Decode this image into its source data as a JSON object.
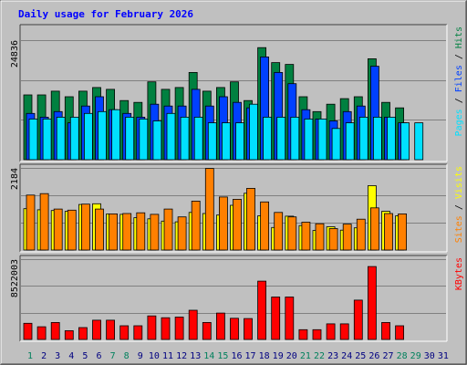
{
  "chart_data": {
    "type": "bar",
    "title": "Daily usage for February 2026",
    "x": [
      "1",
      "2",
      "3",
      "4",
      "5",
      "6",
      "7",
      "8",
      "9",
      "10",
      "11",
      "12",
      "13",
      "14",
      "15",
      "16",
      "17",
      "18",
      "19",
      "20",
      "21",
      "22",
      "23",
      "24",
      "25",
      "26",
      "27",
      "28",
      "29",
      "30",
      "31"
    ],
    "weekend_days": [
      1,
      7,
      8,
      14,
      15,
      21,
      22,
      28,
      29
    ],
    "colors": {
      "hits": "#008040",
      "files": "#0040ff",
      "pages": "#00e0ff",
      "visits": "#ffff00",
      "sites": "#ff8000",
      "kbytes": "#ff0000",
      "title": "#0000ff",
      "weekday": "#000080",
      "weekend": "#00805c"
    },
    "panels": [
      {
        "id": "hits",
        "max_label": "24836",
        "ymax": 24836,
        "legend": [
          {
            "label": "Pages",
            "color": "#00e0ff"
          },
          {
            "label": "Files",
            "color": "#0040ff"
          },
          {
            "label": "Hits",
            "color": "#008040"
          }
        ],
        "series": [
          {
            "name": "Hits",
            "color": "#008040",
            "values": [
              13470,
              13470,
              14230,
              13080,
              14230,
              15000,
              14620,
              12290,
              11900,
              16170,
              14620,
              15000,
              18130,
              14230,
              15000,
              16170,
              12290,
              23280,
              20180,
              19790,
              13080,
              9990,
              11530,
              12690,
              13080,
              20960,
              11900,
              10770,
              null,
              null,
              null
            ]
          },
          {
            "name": "Files",
            "color": "#0040ff",
            "values": [
              9610,
              8840,
              10000,
              7660,
              11150,
              13080,
              10380,
              9610,
              8840,
              11530,
              11150,
              11150,
              14620,
              11150,
              13080,
              11900,
              10770,
              21340,
              18130,
              15800,
              10380,
              8460,
              8060,
              10000,
              11150,
              19410,
              8840,
              7660,
              null,
              null,
              null
            ]
          },
          {
            "name": "Pages",
            "color": "#00e0ff",
            "values": [
              8460,
              8460,
              8840,
              8840,
              9610,
              9990,
              10380,
              8840,
              8460,
              8060,
              9610,
              8840,
              8840,
              7660,
              7660,
              7660,
              11530,
              8840,
              8840,
              8840,
              8460,
              8460,
              6490,
              7660,
              8840,
              8840,
              8840,
              7660,
              7660,
              null,
              null
            ]
          }
        ]
      },
      {
        "id": "visits",
        "max_label": "2184",
        "ymax": 2184,
        "legend": [
          {
            "label": "Sites",
            "color": "#ff8000"
          },
          {
            "label": "Visits",
            "color": "#ffff00"
          }
        ],
        "series": [
          {
            "name": "Visits",
            "color": "#ffff00",
            "values": [
              1100,
              1070,
              1050,
              1030,
              1210,
              1230,
              960,
              950,
              860,
              830,
              770,
              750,
              1000,
              970,
              930,
              1190,
              1510,
              910,
              600,
              900,
              650,
              520,
              620,
              530,
              590,
              1710,
              1030,
              910,
              null,
              null,
              null
            ]
          },
          {
            "name": "Sites",
            "color": "#ff8000",
            "values": [
              1460,
              1500,
              1090,
              1060,
              1220,
              1090,
              960,
              970,
              990,
              950,
              1090,
              880,
              1300,
              2170,
              1410,
              1350,
              1640,
              1280,
              1000,
              880,
              740,
              700,
              570,
              690,
              820,
              1120,
              970,
              960,
              null,
              null,
              null
            ]
          }
        ]
      },
      {
        "id": "kbytes",
        "max_label": "8522003",
        "ymax": 8522003,
        "legend": [
          {
            "label": "KBytes",
            "color": "#ff0000"
          }
        ],
        "series": [
          {
            "name": "KBytes",
            "color": "#ff0000",
            "values": [
              1710000,
              1350000,
              1800000,
              930000,
              1260000,
              2040000,
              2040000,
              1450000,
              1450000,
              2500000,
              2300000,
              2370000,
              3100000,
              1800000,
              2800000,
              2250000,
              2220000,
              6190000,
              4500000,
              4500000,
              1040000,
              1040000,
              1660000,
              1660000,
              4170000,
              7740000,
              1800000,
              1450000,
              null,
              null,
              null
            ]
          }
        ]
      }
    ]
  }
}
